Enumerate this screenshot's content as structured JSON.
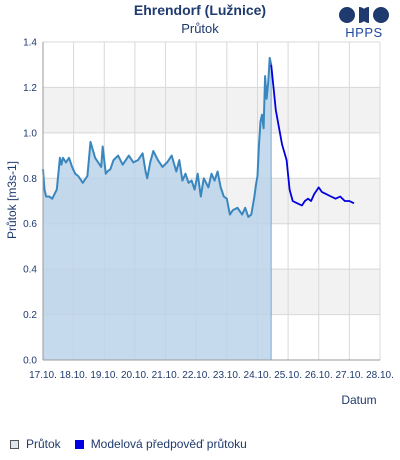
{
  "header": {
    "title": "Ehrendorf (Lužnice)",
    "subtitle": "Průtok",
    "brand": "HPPS"
  },
  "legend": {
    "items": [
      {
        "label": "Průtok",
        "color": "#dfe6ee"
      },
      {
        "label": "Modelová předpověď průtoku",
        "color": "#0000e0"
      }
    ]
  },
  "colors": {
    "observed_line": "#3a87bf",
    "observed_fill": "#bcd4ea",
    "forecast_line": "#0000e0",
    "grid_band": "#f2f2f2",
    "grid_line": "#d8d8d8",
    "logo": "#1f3a6e"
  },
  "chart_data": {
    "type": "area",
    "title": "Ehrendorf (Lužnice)",
    "subtitle": "Průtok",
    "xlabel": "Datum",
    "ylabel": "Průtok [m3s-1]",
    "ylim": [
      0,
      1.4
    ],
    "xlim": [
      17,
      28
    ],
    "yticks": [
      "0.0",
      "0.2",
      "0.4",
      "0.6",
      "0.8",
      "1.0",
      "1.2",
      "1.4"
    ],
    "xticks": [
      "17.10.",
      "18.10.",
      "19.10.",
      "20.10.",
      "21.10.",
      "22.10.",
      "23.10.",
      "24.10.",
      "25.10.",
      "26.10.",
      "27.10.",
      "28.10."
    ],
    "grid": true,
    "legend_position": "bottom",
    "x_unit": "day of October",
    "series": [
      {
        "name": "Průtok",
        "style": "filled-area",
        "x": [
          17.0,
          17.05,
          17.1,
          17.2,
          17.3,
          17.45,
          17.55,
          17.6,
          17.65,
          17.75,
          17.85,
          17.95,
          18.05,
          18.15,
          18.3,
          18.45,
          18.55,
          18.7,
          18.9,
          18.95,
          19.05,
          19.1,
          19.2,
          19.3,
          19.45,
          19.6,
          19.8,
          19.95,
          20.1,
          20.25,
          20.35,
          20.4,
          20.5,
          20.6,
          20.75,
          20.9,
          21.05,
          21.2,
          21.35,
          21.45,
          21.55,
          21.65,
          21.75,
          21.85,
          21.95,
          22.05,
          22.15,
          22.25,
          22.4,
          22.5,
          22.6,
          22.7,
          22.8,
          22.9,
          23.0,
          23.1,
          23.2,
          23.35,
          23.5,
          23.6,
          23.7,
          23.8,
          23.9,
          23.95,
          24.0,
          24.05,
          24.1,
          24.15,
          24.2,
          24.25,
          24.3,
          24.35,
          24.4,
          24.45
        ],
        "y": [
          0.84,
          0.75,
          0.72,
          0.72,
          0.71,
          0.75,
          0.89,
          0.86,
          0.89,
          0.87,
          0.89,
          0.85,
          0.82,
          0.81,
          0.78,
          0.81,
          0.96,
          0.89,
          0.85,
          0.94,
          0.82,
          0.83,
          0.84,
          0.88,
          0.9,
          0.86,
          0.9,
          0.87,
          0.88,
          0.91,
          0.83,
          0.8,
          0.87,
          0.92,
          0.88,
          0.85,
          0.87,
          0.9,
          0.83,
          0.88,
          0.79,
          0.82,
          0.78,
          0.79,
          0.75,
          0.82,
          0.72,
          0.8,
          0.76,
          0.82,
          0.79,
          0.83,
          0.76,
          0.72,
          0.71,
          0.64,
          0.66,
          0.67,
          0.64,
          0.67,
          0.63,
          0.64,
          0.72,
          0.77,
          0.81,
          0.95,
          1.05,
          1.08,
          1.02,
          1.25,
          1.15,
          1.22,
          1.33,
          1.3
        ]
      },
      {
        "name": "Modelová předpověď průtoku",
        "style": "line",
        "x": [
          24.45,
          24.6,
          24.8,
          24.95,
          25.05,
          25.15,
          25.3,
          25.45,
          25.55,
          25.65,
          25.75,
          25.85,
          26.0,
          26.1,
          26.25,
          26.4,
          26.55,
          26.7,
          26.85,
          27.0,
          27.15
        ],
        "y": [
          1.3,
          1.1,
          0.95,
          0.88,
          0.75,
          0.7,
          0.69,
          0.68,
          0.7,
          0.71,
          0.7,
          0.73,
          0.76,
          0.74,
          0.73,
          0.72,
          0.71,
          0.72,
          0.7,
          0.7,
          0.69
        ]
      }
    ]
  }
}
